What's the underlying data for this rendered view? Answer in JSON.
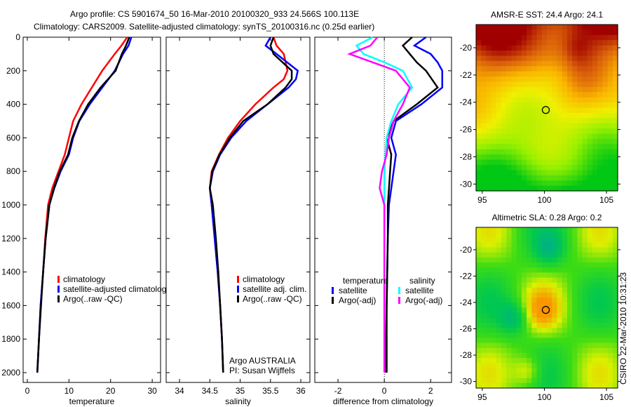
{
  "header": {
    "line1": "Argo profile: CS 5901674_50 16-Mar-2010 20100320_933 24.566S 100.113E",
    "line2": "Climatology: CARS2009. Satellite-adjusted climatology: synTS_20100316.nc (0.25d earlier)"
  },
  "footer_vertical": "CSIRO 22-Mar-2010 10:31:23",
  "colors": {
    "climatology": "#ff0000",
    "satellite": "#0000ff",
    "argo": "#000000",
    "sal_satellite": "#00ffff",
    "sal_argo": "#ff00ff"
  },
  "chart_data": [
    {
      "type": "line",
      "id": "temperature",
      "xlabel": "temperature",
      "xlim": [
        -1,
        32
      ],
      "ylim": [
        0,
        2000
      ],
      "y_reversed": true,
      "xticks": [
        "0",
        "10",
        "20",
        "30"
      ],
      "xtick_values": [
        0,
        10,
        20,
        30
      ],
      "yticks": [
        "0",
        "200",
        "400",
        "600",
        "800",
        "1000",
        "1200",
        "1400",
        "1600",
        "1800",
        "2000"
      ],
      "legend": [
        "climatology",
        "satellite-adjusted climatology",
        "Argo(..raw -QC)"
      ],
      "depth": [
        0,
        50,
        100,
        200,
        300,
        400,
        500,
        600,
        700,
        800,
        900,
        1000,
        1200,
        1400,
        1600,
        1800,
        2000
      ],
      "series": [
        {
          "name": "climatology",
          "color": "#ff0000",
          "values": [
            24,
            22.6,
            21,
            18,
            15.5,
            13,
            11,
            10,
            9,
            7.5,
            6,
            5,
            4.3,
            3.8,
            3.2,
            2.8,
            2.4
          ]
        },
        {
          "name": "satellite-adjusted climatology",
          "color": "#0000ff",
          "values": [
            25,
            24.3,
            23,
            21,
            18,
            15,
            12.5,
            11,
            10,
            8,
            6.5,
            5.3,
            4.4,
            3.8,
            3.2,
            2.8,
            2.4
          ]
        },
        {
          "name": "Argo(..raw -QC)",
          "color": "#000000",
          "values": [
            24.5,
            23.7,
            22.7,
            21.2,
            17.6,
            14.6,
            12.4,
            10.8,
            9.8,
            7.8,
            6.4,
            5.3,
            4.4,
            3.8,
            3.3,
            2.8,
            2.4
          ]
        }
      ]
    },
    {
      "type": "line",
      "id": "salinity",
      "xlabel": "salinity",
      "xlim": [
        33.78,
        36.15
      ],
      "ylim": [
        0,
        2000
      ],
      "y_reversed": true,
      "xticks": [
        "34",
        "34.5",
        "35",
        "35.5",
        "36"
      ],
      "xtick_values": [
        34,
        34.5,
        35,
        35.5,
        36
      ],
      "legend": [
        "climatology",
        "satellite adj. clim.",
        "Argo(..raw -QC)"
      ],
      "annotation": [
        "Argo AUSTRALIA",
        "PI: Susan Wijffels"
      ],
      "depth": [
        0,
        50,
        100,
        200,
        250,
        300,
        400,
        500,
        600,
        700,
        800,
        900,
        1000,
        1200,
        1400,
        1600,
        1800,
        2000
      ],
      "series": [
        {
          "name": "climatology",
          "color": "#ff0000",
          "values": [
            35.55,
            35.6,
            35.72,
            35.78,
            35.72,
            35.55,
            35.25,
            35.0,
            34.8,
            34.65,
            34.53,
            34.5,
            34.53,
            34.58,
            34.63,
            34.67,
            34.7,
            34.72
          ]
        },
        {
          "name": "satellite adj. clim.",
          "color": "#0000ff",
          "values": [
            35.5,
            35.42,
            35.6,
            35.95,
            35.92,
            35.8,
            35.45,
            35.1,
            34.85,
            34.67,
            34.55,
            34.5,
            34.53,
            34.58,
            34.63,
            34.67,
            34.7,
            34.72
          ]
        },
        {
          "name": "Argo(..raw -QC)",
          "color": "#000000",
          "values": [
            35.55,
            35.5,
            35.55,
            35.85,
            35.85,
            35.75,
            35.45,
            35.05,
            34.83,
            34.66,
            34.54,
            34.5,
            34.55,
            34.6,
            34.64,
            34.67,
            34.7,
            34.72
          ]
        }
      ]
    },
    {
      "type": "line",
      "id": "difference",
      "xlabel": "difference from climatology",
      "xlim": [
        -3,
        2.9
      ],
      "ylim": [
        0,
        2000
      ],
      "y_reversed": true,
      "xticks": [
        "-2",
        "0",
        "2"
      ],
      "xtick_values": [
        -2,
        0,
        2
      ],
      "legend_temperature": {
        "title": "temperature",
        "items": [
          "satellite",
          "Argo(-adj)"
        ]
      },
      "legend_salinity": {
        "title": "salinity",
        "items": [
          "satellite",
          "Argo(-adj)"
        ]
      },
      "depth": [
        0,
        50,
        100,
        150,
        200,
        300,
        400,
        500,
        600,
        700,
        800,
        900,
        1000,
        1200,
        1600,
        2000
      ],
      "series": [
        {
          "name": "temperature satellite",
          "color": "#0000ff",
          "values": [
            1.8,
            1.3,
            2.0,
            2.3,
            2.5,
            2.5,
            1.6,
            0.5,
            0.3,
            0.5,
            0.4,
            0.3,
            0.2,
            0.15,
            0.1,
            0.05
          ]
        },
        {
          "name": "temperature Argo(-adj)",
          "color": "#000000",
          "values": [
            1.2,
            0.8,
            1.1,
            1.4,
            1.8,
            2.3,
            1.4,
            0.4,
            0.1,
            0.3,
            0.25,
            0.2,
            0.15,
            0.15,
            0.1,
            0.1
          ]
        },
        {
          "name": "salinity satellite",
          "color": "#00ffff",
          "values": [
            -0.5,
            -1.2,
            -0.9,
            0,
            0.8,
            1.2,
            0.6,
            0.3,
            0.1,
            0.05,
            0,
            0,
            0,
            0,
            0,
            0
          ]
        },
        {
          "name": "salinity Argo(-adj)",
          "color": "#ff00ff",
          "values": [
            -0.3,
            -0.6,
            -1.5,
            -0.5,
            0.5,
            1.1,
            0.8,
            0.4,
            0.2,
            0.1,
            -0.1,
            -0.2,
            0,
            0,
            0,
            0
          ]
        }
      ]
    },
    {
      "type": "heatmap",
      "id": "sst_map",
      "title": "AMSR-E SST: 24.4 Argo: 24.1",
      "xticks": [
        "95",
        "100",
        "105"
      ],
      "xtick_values": [
        95,
        100,
        105
      ],
      "yticks": [
        "-20",
        "-22",
        "-24",
        "-26",
        "-28",
        "-30"
      ],
      "ytick_values": [
        -20,
        -22,
        -24,
        -26,
        -28,
        -30
      ],
      "lon_range": [
        94.5,
        105.9
      ],
      "lat_range": [
        -30.5,
        -18.3
      ],
      "marker": {
        "lon": 100.113,
        "lat": -24.566
      }
    },
    {
      "type": "heatmap",
      "id": "sla_map",
      "title": "Altimetric SLA: 0.28 Argo: 0.2",
      "xticks": [
        "95",
        "100",
        "105"
      ],
      "xtick_values": [
        95,
        100,
        105
      ],
      "yticks": [
        "-20",
        "-22",
        "-24",
        "-26",
        "-28",
        "-30"
      ],
      "ytick_values": [
        -20,
        -22,
        -24,
        -26,
        -28,
        -30
      ],
      "lon_range": [
        94.5,
        105.9
      ],
      "lat_range": [
        -30.5,
        -18.3
      ],
      "marker": {
        "lon": 100.113,
        "lat": -24.566
      }
    }
  ]
}
